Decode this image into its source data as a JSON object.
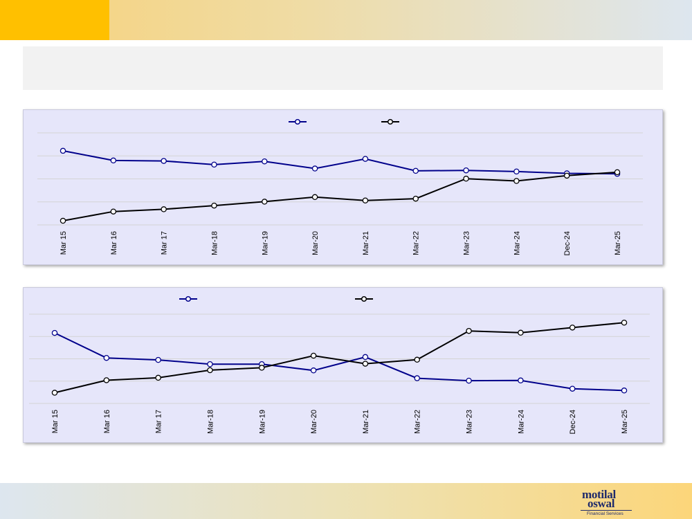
{
  "brand": {
    "logo_line1": "motilal",
    "logo_line2": "oswal",
    "logo_sub": "Financial Services"
  },
  "colors": {
    "series1": "#00008b",
    "series2": "#000000",
    "panel_bg": "#e6e6fa",
    "accent": "#ffc000"
  },
  "chart_data": [
    {
      "type": "line",
      "title": "",
      "categories": [
        "Mar 15",
        "Mar 16",
        "Mar 17",
        "Mar-18",
        "Mar-19",
        "Mar-20",
        "Mar-21",
        "Mar-22",
        "Mar-23",
        "Mar-24",
        "Dec-24",
        "Mar-25"
      ],
      "series": [
        {
          "values": [
            3.22,
            2.8,
            2.78,
            2.62,
            2.76,
            2.45,
            2.87,
            2.35,
            2.37,
            2.32,
            2.24,
            2.22
          ]
        },
        {
          "values": [
            0.18,
            0.58,
            0.68,
            0.84,
            1.01,
            1.21,
            1.06,
            1.14,
            2.01,
            1.91,
            2.14,
            2.29
          ]
        }
      ],
      "ylim": [
        0,
        4
      ],
      "grid": true,
      "legend": "top-center"
    },
    {
      "type": "line",
      "title": "",
      "categories": [
        "Mar 15",
        "Mar 16",
        "Mar 17",
        "Mar-18",
        "Mar-19",
        "Mar-20",
        "Mar-21",
        "Mar-22",
        "Mar-23",
        "Mar-24",
        "Dec-24",
        "Mar-25"
      ],
      "series": [
        {
          "values": [
            3.16,
            2.04,
            1.95,
            1.76,
            1.76,
            1.48,
            2.08,
            1.13,
            1.02,
            1.03,
            0.66,
            0.58
          ]
        },
        {
          "values": [
            0.48,
            1.04,
            1.15,
            1.49,
            1.6,
            2.14,
            1.78,
            1.96,
            3.25,
            3.17,
            3.4,
            3.62
          ]
        }
      ],
      "ylim": [
        0,
        4
      ],
      "grid": true,
      "legend": "top-center"
    }
  ]
}
